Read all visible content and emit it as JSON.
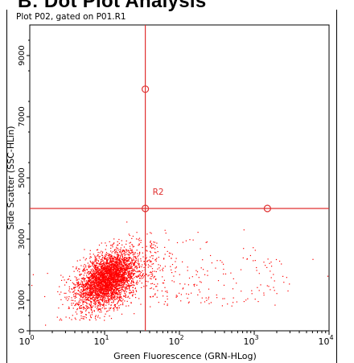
{
  "heading": "B: Dot Plot Analysis",
  "chart_data": {
    "type": "scatter",
    "title": "Plot P02, gated on P01.R1",
    "xlabel": "Green Fluorescence (GRN-HLog)",
    "ylabel": "Side Scatter (SSC-HLin)",
    "x_scale": "log",
    "xlim": [
      1,
      10000
    ],
    "ylim": [
      0,
      10000
    ],
    "x_ticks": [
      {
        "value": 1,
        "base": "10",
        "exp": "0"
      },
      {
        "value": 10,
        "base": "10",
        "exp": "1"
      },
      {
        "value": 100,
        "base": "10",
        "exp": "2"
      },
      {
        "value": 1000,
        "base": "10",
        "exp": "3"
      },
      {
        "value": 10000,
        "base": "10",
        "exp": "4"
      }
    ],
    "y_ticks": [
      "0",
      "1000",
      "3000",
      "5000",
      "7000",
      "9000"
    ],
    "y_tick_values": [
      0,
      1000,
      3000,
      5000,
      7000,
      9000
    ],
    "point_color": "#ff0000",
    "gate_color": "#e03030",
    "quadrant_gate": {
      "label": "R2",
      "x": 35,
      "y": 4000
    },
    "gate_handles": [
      {
        "x": 35,
        "y": 7900
      },
      {
        "x": 35,
        "y": 4000
      },
      {
        "x": 1500,
        "y": 4000
      }
    ],
    "population": {
      "main_cluster": {
        "x_center": 11,
        "y_center": 1700,
        "n": 3600
      },
      "tail": {
        "x_range": [
          40,
          3000
        ],
        "y_range": [
          800,
          3500
        ],
        "n": 260
      }
    }
  }
}
